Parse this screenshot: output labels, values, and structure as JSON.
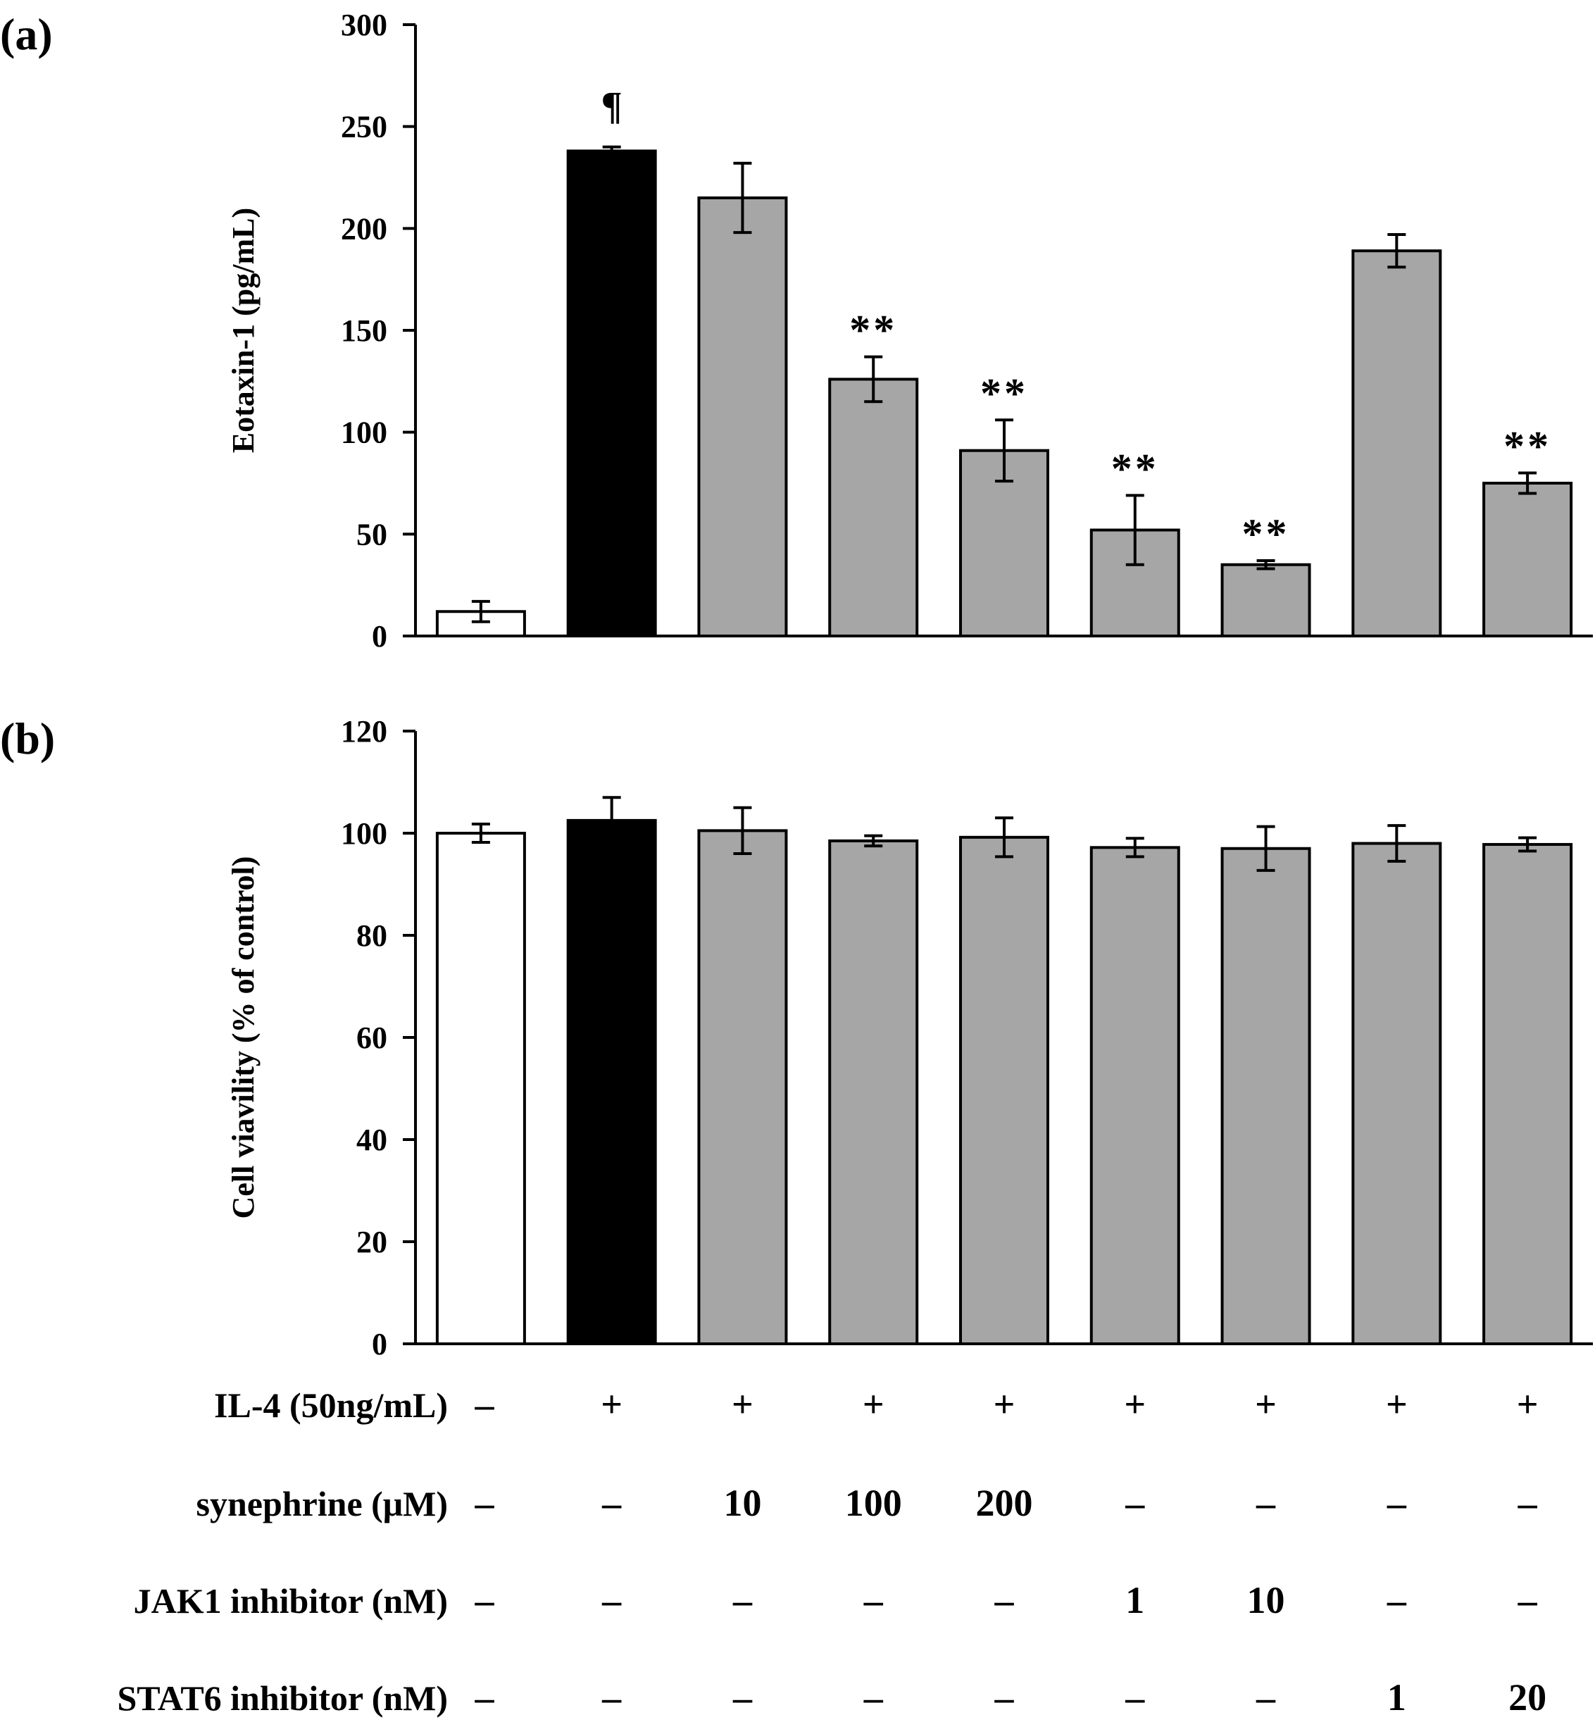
{
  "colors": {
    "control": "#ffffff",
    "il4": "#000000",
    "treatment": "#a6a6a6",
    "stroke": "#000000"
  },
  "chart_data": [
    {
      "type": "bar",
      "panel_label": "(a)",
      "ylabel": "Eotaxin-1 (pg/mL)",
      "ylim": [
        0,
        300
      ],
      "yticks": [
        0,
        50,
        100,
        150,
        200,
        250,
        300
      ],
      "grid": false,
      "values": [
        12,
        238,
        215,
        126,
        91,
        52,
        35,
        189,
        75
      ],
      "errors": [
        5,
        2,
        17,
        11,
        15,
        17,
        2,
        8,
        5
      ],
      "fill_roles": [
        "control",
        "il4",
        "treatment",
        "treatment",
        "treatment",
        "treatment",
        "treatment",
        "treatment",
        "treatment"
      ],
      "annotations": [
        "",
        "¶",
        "",
        "**",
        "**",
        "**",
        "**",
        "",
        "**"
      ]
    },
    {
      "type": "bar",
      "panel_label": "(b)",
      "ylabel": "Cell viavility (% of control)",
      "ylim": [
        0,
        120
      ],
      "yticks": [
        0,
        20,
        40,
        60,
        80,
        100,
        120
      ],
      "grid": false,
      "values": [
        100,
        102.5,
        100.5,
        98.5,
        99.2,
        97.2,
        97,
        98,
        97.8
      ],
      "errors": [
        1.8,
        4.5,
        4.5,
        1,
        3.8,
        1.8,
        4.3,
        3.5,
        1.3
      ],
      "fill_roles": [
        "control",
        "il4",
        "treatment",
        "treatment",
        "treatment",
        "treatment",
        "treatment",
        "treatment",
        "treatment"
      ],
      "annotations": [
        "",
        "",
        "",
        "",
        "",
        "",
        "",
        "",
        ""
      ]
    }
  ],
  "conditions_table": [
    {
      "label": "IL-4 (50ng/mL)",
      "values": [
        "–",
        "+",
        "+",
        "+",
        "+",
        "+",
        "+",
        "+",
        "+"
      ]
    },
    {
      "label": "synephrine (μM)",
      "values": [
        "–",
        "–",
        "10",
        "100",
        "200",
        "–",
        "–",
        "–",
        "–"
      ]
    },
    {
      "label": "JAK1 inhibitor (nM)",
      "values": [
        "–",
        "–",
        "–",
        "–",
        "–",
        "1",
        "10",
        "–",
        "–"
      ]
    },
    {
      "label": "STAT6 inhibitor (nM)",
      "values": [
        "–",
        "–",
        "–",
        "–",
        "–",
        "–",
        "–",
        "1",
        "20"
      ]
    }
  ]
}
